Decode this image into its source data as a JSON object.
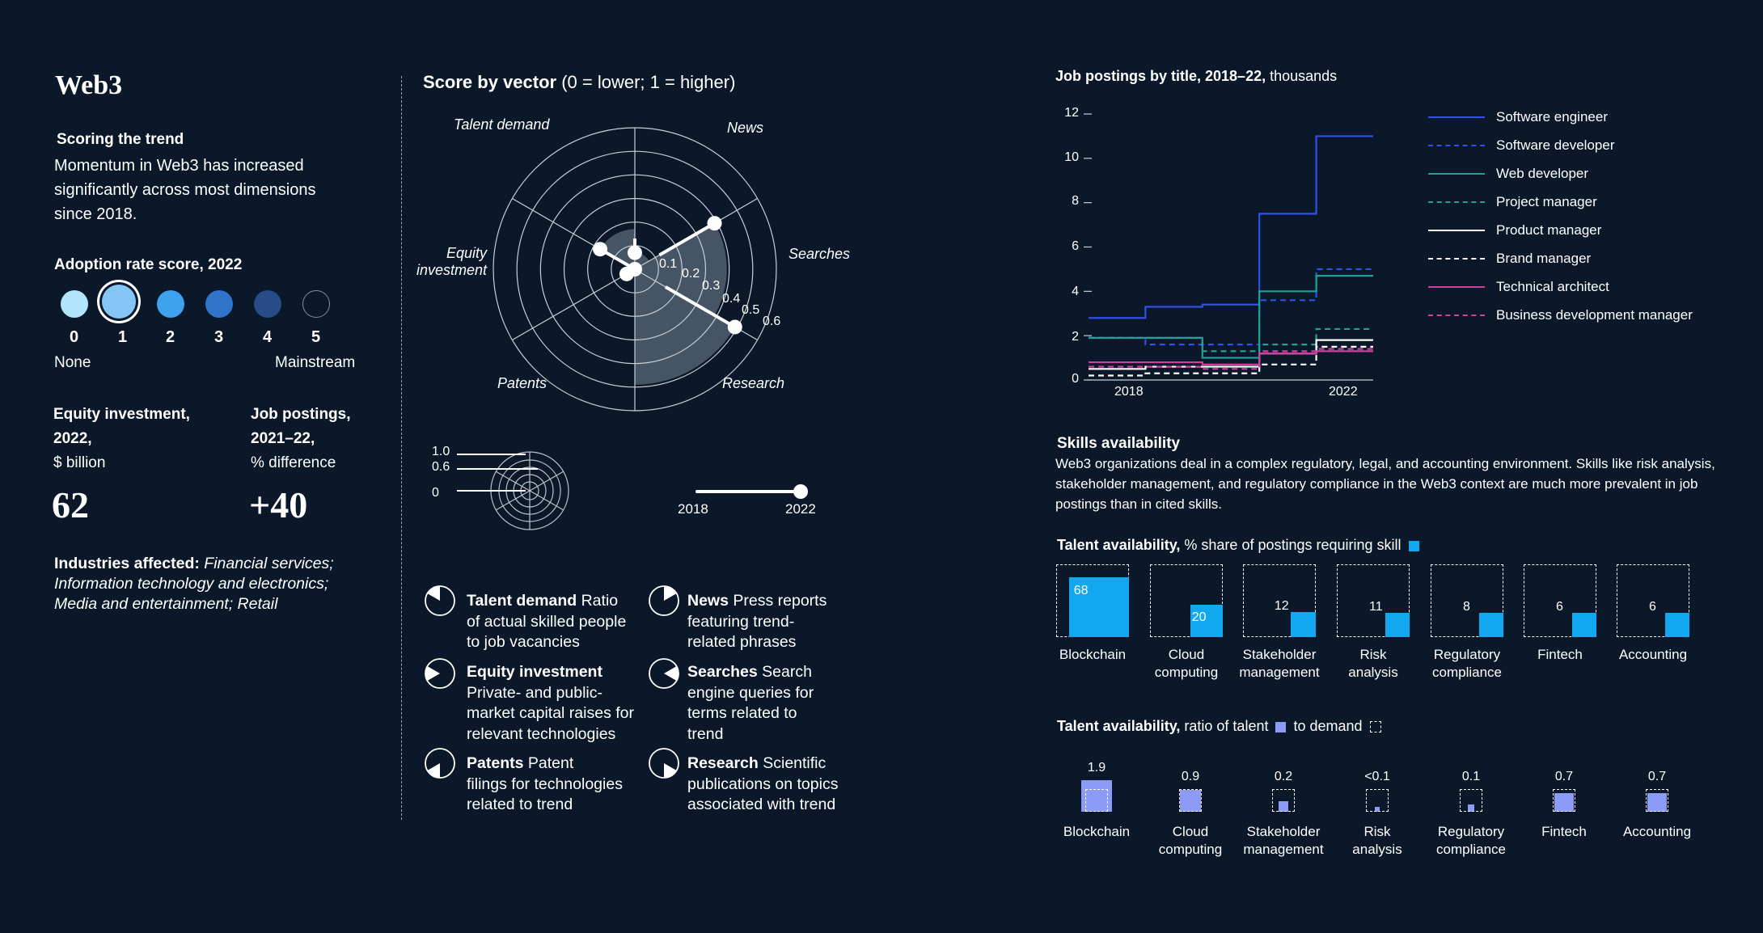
{
  "left": {
    "title": "Web3",
    "scoring_heading": "Scoring the trend",
    "scoring_text": "Momentum in Web3 has increased significantly across most dimensions since 2018.",
    "adoption_heading": "Adoption rate score, 2022",
    "adoption_scores": [
      "0",
      "1",
      "2",
      "3",
      "4",
      "5"
    ],
    "adoption_selected": 1,
    "adoption_colors": [
      "#b0e5fb",
      "#86c6f7",
      "#3fa2ef",
      "#2f74c8",
      "#274c86",
      "#0b1829"
    ],
    "label_none": "None",
    "label_mainstream": "Mainstream",
    "equity_label_1": "Equity investment,",
    "equity_label_2": "2022,",
    "equity_unit": "$ billion",
    "equity_value": "62",
    "jobs_label_1": "Job postings,",
    "jobs_label_2": "2021–22,",
    "jobs_unit": "% difference",
    "jobs_value": "+40",
    "industries_label": "Industries affected:",
    "industries_text_1": "Financial services;",
    "industries_text_2": "Information technology and electronics;",
    "industries_text_3": "Media and entertainment; Retail"
  },
  "radar": {
    "title_bold": "Score by vector",
    "title_rest": "(0 = lower; 1 = higher)",
    "axis_labels": {
      "talent_demand": "Talent demand",
      "news": "News",
      "searches": "Searches",
      "research": "Research",
      "patents": "Patents",
      "equity_1": "Equity",
      "equity_2": "investment"
    },
    "ring_labels": [
      "0.1",
      "0.2",
      "0.3",
      "0.4",
      "0.5",
      "0.6"
    ],
    "key_labels": [
      "1.0",
      "0.6",
      "0"
    ],
    "slider_start": "2018",
    "slider_end": "2022"
  },
  "vectors": {
    "talent_demand": {
      "bold": "Talent demand",
      "l1": "Ratio",
      "l2": "of actual skilled people",
      "l3": "to job vacancies"
    },
    "news": {
      "bold": "News",
      "l1": "Press reports",
      "l2": "featuring trend-",
      "l3": "related phrases"
    },
    "equity": {
      "bold": "Equity investment",
      "l1": "Private- and public-",
      "l2": "market capital raises for",
      "l3": "relevant technologies"
    },
    "searches": {
      "bold": "Searches",
      "l1": "Search",
      "l2": "engine queries for",
      "l3": "terms related to",
      "l4": "trend"
    },
    "patents": {
      "bold": "Patents",
      "l1": "Patent",
      "l2": "filings for technologies",
      "l3": "related to trend"
    },
    "research": {
      "bold": "Research",
      "l1": "Scientific",
      "l2": "publications on topics",
      "l3": "associated with trend"
    }
  },
  "jobs": {
    "title_bold": "Job postings by title, 2018–22,",
    "title_rest": "thousands",
    "y_ticks": [
      "12",
      "10",
      "8",
      "6",
      "4",
      "2",
      "0"
    ],
    "x_labels": [
      "2018",
      "2022"
    ],
    "legend": [
      {
        "name": "Software engineer",
        "color": "#3050e8",
        "dash": false
      },
      {
        "name": "Software developer",
        "color": "#3050e8",
        "dash": true
      },
      {
        "name": "Web developer",
        "color": "#22a096",
        "dash": false
      },
      {
        "name": "Project manager",
        "color": "#22a096",
        "dash": true
      },
      {
        "name": "Product manager",
        "color": "#ffffff",
        "dash": false
      },
      {
        "name": "Brand manager",
        "color": "#ffffff",
        "dash": true
      },
      {
        "name": "Technical architect",
        "color": "#d040a0",
        "dash": false
      },
      {
        "name": "Business development manager",
        "color": "#d040a0",
        "dash": true
      }
    ]
  },
  "skills": {
    "heading": "Skills availability",
    "text_1": "Web3 organizations deal in a complex regulatory, legal, and accounting environment. Skills like risk analysis,",
    "text_2": "stakeholder management, and regulatory compliance in the Web3 context are much more prevalent in job",
    "text_3": "postings than in cited skills.",
    "share_title_bold": "Talent availability,",
    "share_title_rest": "% share of postings requiring skill",
    "ratio_title_bold": "Talent availability,",
    "ratio_title_mid": "ratio of talent",
    "ratio_title_end": "to demand",
    "categories": [
      {
        "l1": "Blockchain",
        "l2": ""
      },
      {
        "l1": "Cloud",
        "l2": "computing"
      },
      {
        "l1": "Stakeholder",
        "l2": "management"
      },
      {
        "l1": "Risk",
        "l2": "analysis"
      },
      {
        "l1": "Regulatory",
        "l2": "compliance"
      },
      {
        "l1": "Fintech",
        "l2": ""
      },
      {
        "l1": "Accounting",
        "l2": ""
      }
    ],
    "ratio_labels": [
      "1.9",
      "0.9",
      "0.2",
      "<0.1",
      "0.1",
      "0.7",
      "0.7"
    ]
  },
  "chart_data": [
    {
      "type": "radar",
      "title": "Score by vector (0 = lower; 1 = higher)",
      "axes": [
        "Talent demand",
        "News",
        "Searches",
        "Research",
        "Patents",
        "Equity investment"
      ],
      "values_2018": [
        0.13,
        0.12,
        0.15,
        0.0,
        0.03,
        0.01
      ],
      "values_2022": [
        0.07,
        0.39,
        0.49,
        0.0,
        0.04,
        0.17
      ],
      "ring_values": [
        0.1,
        0.2,
        0.3,
        0.4,
        0.5,
        0.6
      ]
    },
    {
      "type": "line",
      "title": "Job postings by title, 2018–22, thousands",
      "x": [
        2018,
        2019,
        2020,
        2021,
        2022
      ],
      "ylim": [
        0,
        12
      ],
      "series": [
        {
          "name": "Software engineer",
          "values": [
            2.8,
            3.3,
            3.4,
            7.5,
            11.0
          ]
        },
        {
          "name": "Software developer",
          "values": [
            1.9,
            1.6,
            1.6,
            3.6,
            5.0
          ]
        },
        {
          "name": "Web developer",
          "values": [
            1.9,
            1.9,
            1.0,
            4.0,
            4.7
          ]
        },
        {
          "name": "Project manager",
          "values": [
            1.9,
            1.9,
            1.3,
            1.6,
            2.3
          ]
        },
        {
          "name": "Product manager",
          "values": [
            0.5,
            0.6,
            0.6,
            1.2,
            1.8
          ]
        },
        {
          "name": "Brand manager",
          "values": [
            0.2,
            0.3,
            0.3,
            0.7,
            1.5
          ]
        },
        {
          "name": "Technical architect",
          "values": [
            0.8,
            0.8,
            0.7,
            1.2,
            1.3
          ]
        },
        {
          "name": "Business development manager",
          "values": [
            0.6,
            0.6,
            0.5,
            1.3,
            1.4
          ]
        }
      ]
    },
    {
      "type": "bar",
      "title": "Talent availability, % share of postings requiring skill",
      "categories": [
        "Blockchain",
        "Cloud computing",
        "Stakeholder management",
        "Risk analysis",
        "Regulatory compliance",
        "Fintech",
        "Accounting"
      ],
      "values": [
        68,
        20,
        12,
        11,
        8,
        6,
        6
      ]
    },
    {
      "type": "bar",
      "title": "Talent availability, ratio of talent to demand",
      "categories": [
        "Blockchain",
        "Cloud computing",
        "Stakeholder management",
        "Risk analysis",
        "Regulatory compliance",
        "Fintech",
        "Accounting"
      ],
      "values": [
        1.9,
        0.9,
        0.2,
        0.05,
        0.1,
        0.7,
        0.7
      ],
      "value_labels": [
        "1.9",
        "0.9",
        "0.2",
        "<0.1",
        "0.1",
        "0.7",
        "0.7"
      ]
    }
  ]
}
